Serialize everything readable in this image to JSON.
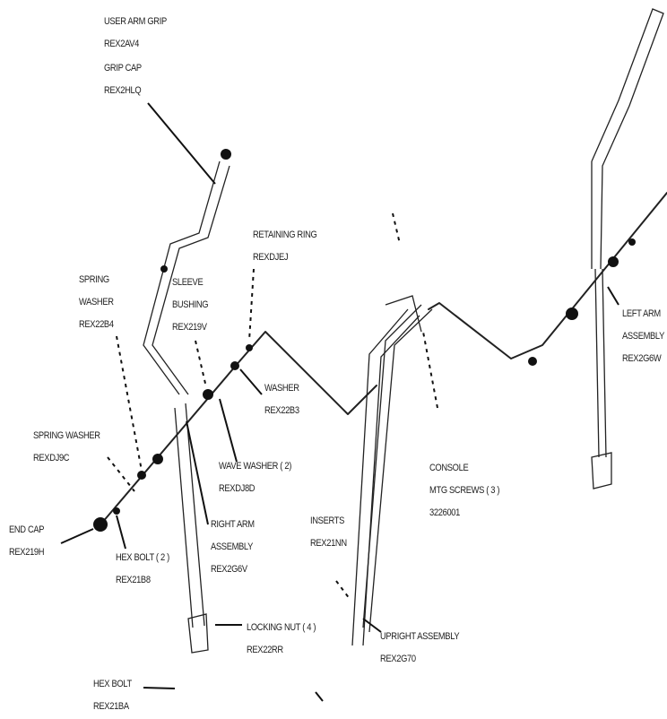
{
  "parts": [
    {
      "lines": [
        "USER ARM GRIP",
        "REX2AV4"
      ]
    },
    {
      "lines": [
        "GRIP CAP",
        "REX2HLQ"
      ]
    },
    {
      "lines": [
        "RETAINING RING",
        "REXDJEJ"
      ]
    },
    {
      "lines": [
        "SPRING",
        "WASHER",
        "REX22B4"
      ]
    },
    {
      "lines": [
        "SLEEVE",
        "BUSHING",
        "REX219V"
      ]
    },
    {
      "lines": [
        "WASHER",
        "REX22B3"
      ]
    },
    {
      "lines": [
        "SPRING WASHER",
        "REXDJ9C"
      ]
    },
    {
      "lines": [
        "WAVE WASHER ( 2)",
        "REXDJ8D"
      ]
    },
    {
      "lines": [
        "CONSOLE",
        "MTG SCREWS ( 3 )",
        "3226001"
      ]
    },
    {
      "lines": [
        "LEFT ARM",
        "ASSEMBLY",
        "REX2G6W"
      ]
    },
    {
      "lines": [
        "END CAP",
        "REX219H"
      ]
    },
    {
      "lines": [
        "HEX BOLT ( 2 )",
        "REX21B8"
      ]
    },
    {
      "lines": [
        "RIGHT ARM",
        "ASSEMBLY",
        "REX2G6V"
      ]
    },
    {
      "lines": [
        "INSERTS",
        "REX21NN"
      ]
    },
    {
      "lines": [
        "LOCKING NUT ( 4 )",
        "REX22RR"
      ]
    },
    {
      "lines": [
        "UPRIGHT ASSEMBLY",
        "REX2G70"
      ]
    },
    {
      "lines": [
        "HEX BOLT",
        "REX21BA"
      ]
    }
  ]
}
